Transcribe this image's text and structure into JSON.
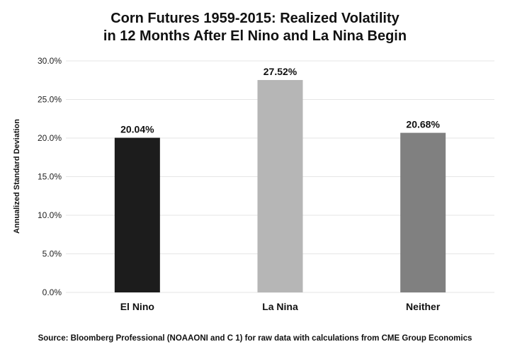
{
  "chart_data": {
    "type": "bar",
    "title_lines": [
      "Corn Futures 1959-2015: Realized Volatility",
      "in 12 Months After El Nino and La Nina Begin"
    ],
    "categories": [
      "El Nino",
      "La Nina",
      "Neither"
    ],
    "values": [
      20.04,
      27.52,
      20.68
    ],
    "data_labels": [
      "20.04%",
      "27.52%",
      "20.68%"
    ],
    "bar_colors": [
      "#1c1c1c",
      "#b6b6b6",
      "#808080"
    ],
    "ylabel": "Annualized Standard Deviation",
    "xlabel": "",
    "ylim": [
      0,
      30
    ],
    "yticks": [
      0,
      5,
      10,
      15,
      20,
      25,
      30
    ],
    "ytick_labels": [
      "0.0%",
      "5.0%",
      "10.0%",
      "15.0%",
      "20.0%",
      "25.0%",
      "30.0%"
    ],
    "grid": true,
    "gridline_color": "#e6e6e6",
    "source": "Source: Bloomberg Professional (NOAAONI and C 1) for raw data with calculations from CME Group Economics"
  }
}
